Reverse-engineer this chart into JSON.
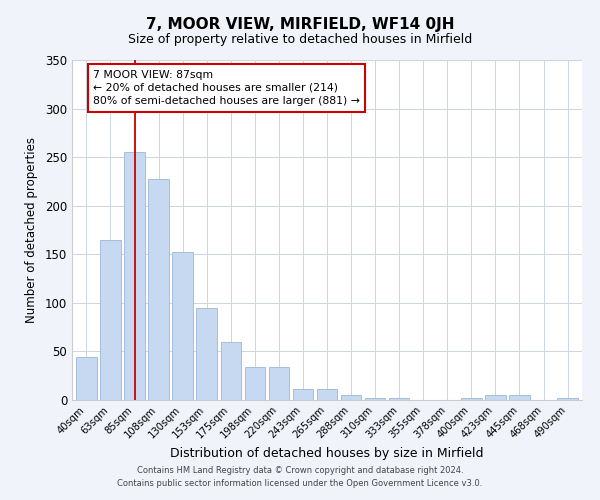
{
  "title": "7, MOOR VIEW, MIRFIELD, WF14 0JH",
  "subtitle": "Size of property relative to detached houses in Mirfield",
  "xlabel": "Distribution of detached houses by size in Mirfield",
  "ylabel": "Number of detached properties",
  "bar_labels": [
    "40sqm",
    "63sqm",
    "85sqm",
    "108sqm",
    "130sqm",
    "153sqm",
    "175sqm",
    "198sqm",
    "220sqm",
    "243sqm",
    "265sqm",
    "288sqm",
    "310sqm",
    "333sqm",
    "355sqm",
    "378sqm",
    "400sqm",
    "423sqm",
    "445sqm",
    "468sqm",
    "490sqm"
  ],
  "bar_values": [
    44,
    165,
    255,
    228,
    152,
    95,
    60,
    34,
    34,
    11,
    11,
    5,
    2,
    2,
    0,
    0,
    2,
    5,
    5,
    0,
    2
  ],
  "bar_color": "#c6d9f0",
  "bar_edge_color": "#9ab8d8",
  "vline_x_index": 2,
  "vline_color": "#cc0000",
  "ylim": [
    0,
    350
  ],
  "yticks": [
    0,
    50,
    100,
    150,
    200,
    250,
    300,
    350
  ],
  "annotation_title": "7 MOOR VIEW: 87sqm",
  "annotation_line1": "← 20% of detached houses are smaller (214)",
  "annotation_line2": "80% of semi-detached houses are larger (881) →",
  "footer1": "Contains HM Land Registry data © Crown copyright and database right 2024.",
  "footer2": "Contains public sector information licensed under the Open Government Licence v3.0.",
  "background_color": "#f0f4fa",
  "plot_bg_color": "#ffffff",
  "grid_color": "#ccd5e0"
}
